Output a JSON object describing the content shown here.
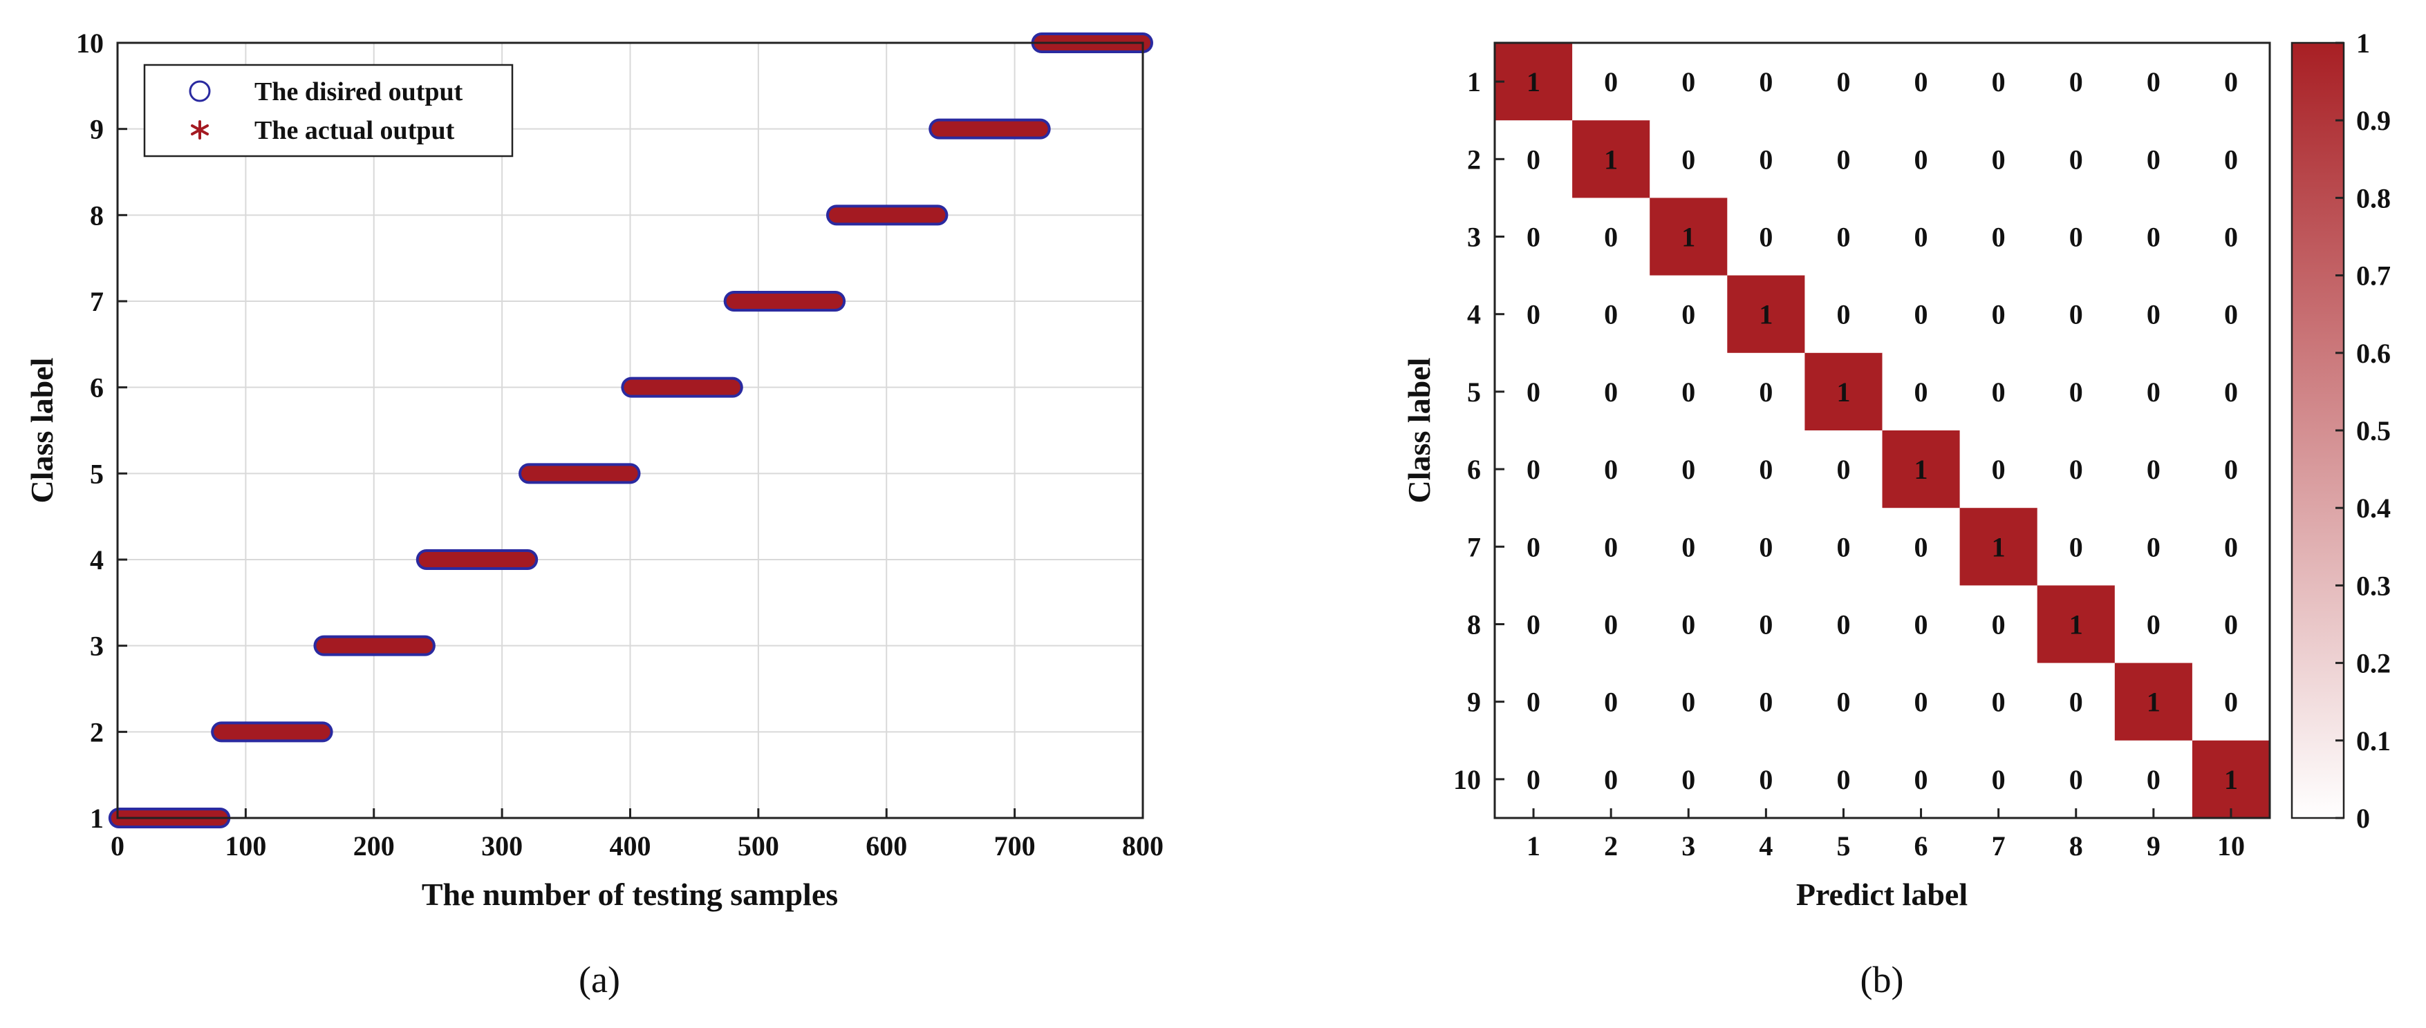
{
  "figure": {
    "caption_a": "(a)",
    "caption_b": "(b)"
  },
  "chart_data": [
    {
      "type": "scatter",
      "xlabel": "The number of testing samples",
      "ylabel": "Class label",
      "xlim": [
        0,
        800
      ],
      "ylim": [
        1,
        10
      ],
      "xticks": [
        0,
        100,
        200,
        300,
        400,
        500,
        600,
        700,
        800
      ],
      "yticks": [
        1,
        2,
        3,
        4,
        5,
        6,
        7,
        8,
        9,
        10
      ],
      "grid": true,
      "legend": "top-left",
      "segments": [
        {
          "class": 1,
          "x_start": 1,
          "x_end": 80
        },
        {
          "class": 2,
          "x_start": 81,
          "x_end": 160
        },
        {
          "class": 3,
          "x_start": 161,
          "x_end": 240
        },
        {
          "class": 4,
          "x_start": 241,
          "x_end": 320
        },
        {
          "class": 5,
          "x_start": 321,
          "x_end": 400
        },
        {
          "class": 6,
          "x_start": 401,
          "x_end": 480
        },
        {
          "class": 7,
          "x_start": 481,
          "x_end": 560
        },
        {
          "class": 8,
          "x_start": 561,
          "x_end": 640
        },
        {
          "class": 9,
          "x_start": 641,
          "x_end": 720
        },
        {
          "class": 10,
          "x_start": 721,
          "x_end": 800
        }
      ],
      "series": [
        {
          "name": "The disired output",
          "marker": "circle",
          "color": "#2a2aa0"
        },
        {
          "name": "The actual output",
          "marker": "asterisk",
          "color": "#a41a22"
        }
      ]
    },
    {
      "type": "heatmap",
      "xlabel": "Predict label",
      "ylabel": "Class label",
      "x_categories": [
        "1",
        "2",
        "3",
        "4",
        "5",
        "6",
        "7",
        "8",
        "9",
        "10"
      ],
      "y_categories": [
        "1",
        "2",
        "3",
        "4",
        "5",
        "6",
        "7",
        "8",
        "9",
        "10"
      ],
      "values": [
        [
          1,
          0,
          0,
          0,
          0,
          0,
          0,
          0,
          0,
          0
        ],
        [
          0,
          1,
          0,
          0,
          0,
          0,
          0,
          0,
          0,
          0
        ],
        [
          0,
          0,
          1,
          0,
          0,
          0,
          0,
          0,
          0,
          0
        ],
        [
          0,
          0,
          0,
          1,
          0,
          0,
          0,
          0,
          0,
          0
        ],
        [
          0,
          0,
          0,
          0,
          1,
          0,
          0,
          0,
          0,
          0
        ],
        [
          0,
          0,
          0,
          0,
          0,
          1,
          0,
          0,
          0,
          0
        ],
        [
          0,
          0,
          0,
          0,
          0,
          0,
          1,
          0,
          0,
          0
        ],
        [
          0,
          0,
          0,
          0,
          0,
          0,
          0,
          1,
          0,
          0
        ],
        [
          0,
          0,
          0,
          0,
          0,
          0,
          0,
          0,
          1,
          0
        ],
        [
          0,
          0,
          0,
          0,
          0,
          0,
          0,
          0,
          0,
          1
        ]
      ],
      "colorbar": {
        "min": 0,
        "max": 1,
        "ticks": [
          "0",
          "0.1",
          "0.2",
          "0.3",
          "0.4",
          "0.5",
          "0.6",
          "0.7",
          "0.8",
          "0.9",
          "1"
        ],
        "color_high": "#a81f24",
        "color_low": "#ffffff"
      }
    }
  ]
}
